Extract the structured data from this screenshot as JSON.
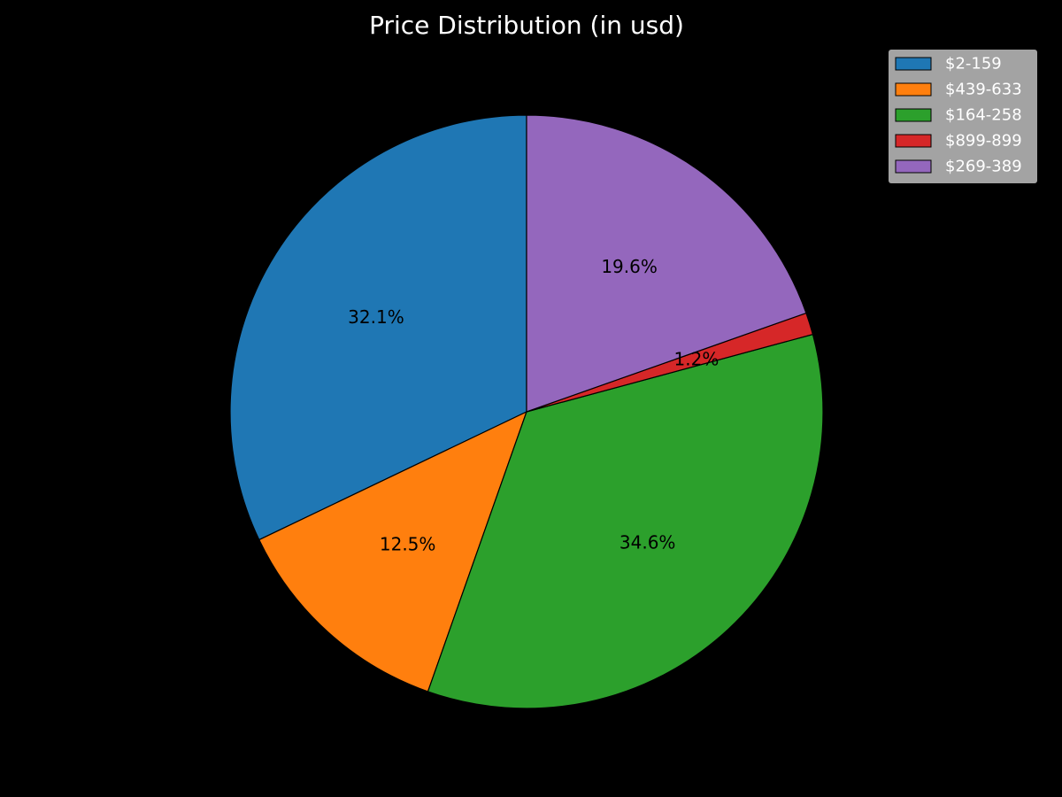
{
  "chart_data": {
    "type": "pie",
    "title": "Price Distribution (in usd)",
    "start_angle_deg": 90,
    "direction": "counterclockwise",
    "legend_placement": "top-right",
    "slices": [
      {
        "label": "$2-159",
        "value": 32.1,
        "pct_label": "32.1%",
        "color": "#1f77b4"
      },
      {
        "label": "$439-633",
        "value": 12.5,
        "pct_label": "12.5%",
        "color": "#ff7f0e"
      },
      {
        "label": "$164-258",
        "value": 34.6,
        "pct_label": "34.6%",
        "color": "#2ca02c"
      },
      {
        "label": "$899-899",
        "value": 1.2,
        "pct_label": "1.2%",
        "color": "#d62728"
      },
      {
        "label": "$269-389",
        "value": 19.6,
        "pct_label": "19.6%",
        "color": "#9467bd"
      }
    ]
  }
}
